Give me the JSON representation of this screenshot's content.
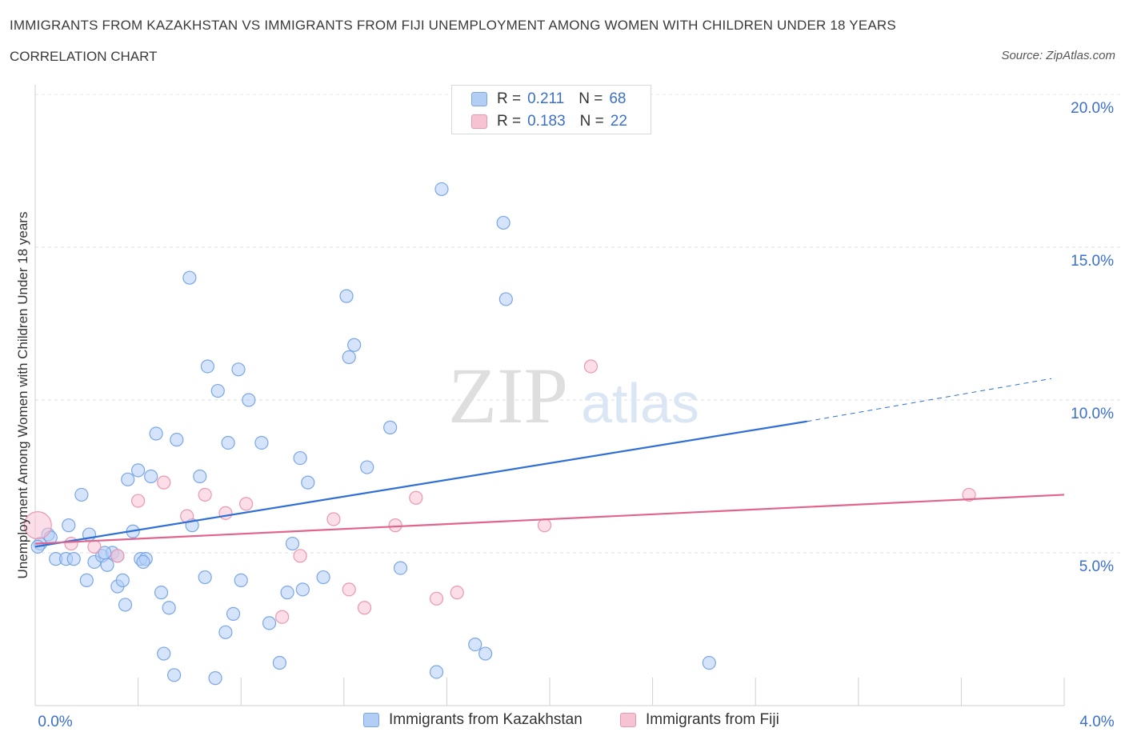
{
  "header": {
    "title": "IMMIGRANTS FROM KAZAKHSTAN VS IMMIGRANTS FROM FIJI UNEMPLOYMENT AMONG WOMEN WITH CHILDREN UNDER 18 YEARS",
    "subtitle": "CORRELATION CHART",
    "source": "Source: ZipAtlas.com"
  },
  "legend": {
    "r_label": "R =",
    "n_label": "N =",
    "rows": [
      {
        "r": "0.211",
        "n": "68",
        "color": "#b3cef5",
        "border": "#7aa6e6"
      },
      {
        "r": "0.183",
        "n": "22",
        "color": "#f7c3d3",
        "border": "#eb97b0"
      }
    ]
  },
  "watermark": {
    "zip": "ZIP",
    "atlas": "atlas"
  },
  "chart_data": {
    "type": "scatter",
    "title": "IMMIGRANTS FROM KAZAKHSTAN VS IMMIGRANTS FROM FIJI UNEMPLOYMENT AMONG WOMEN WITH CHILDREN UNDER 18 YEARS",
    "xlabel": "",
    "ylabel": "Unemployment Among Women with Children Under 18 years",
    "xlim": [
      0,
      4
    ],
    "ylim": [
      0,
      20
    ],
    "x_tick_labels": [
      "0.0%",
      "4.0%"
    ],
    "y_ticks": [
      5,
      10,
      15,
      20
    ],
    "y_tick_labels": [
      "5.0%",
      "10.0%",
      "15.0%",
      "20.0%"
    ],
    "grid": true,
    "legend_position": "bottom",
    "series": [
      {
        "name": "Immigrants from Kazakhstan",
        "color": "#7aa6e6",
        "fill": "#b3cef5",
        "trend": {
          "x0": 0,
          "y0": 5.2,
          "x1": 3.0,
          "y1": 9.3,
          "dash_to_x": 3.95,
          "dash_to_y": 10.7
        },
        "points": [
          [
            0.02,
            5.3
          ],
          [
            0.05,
            5.6
          ],
          [
            0.06,
            5.5
          ],
          [
            0.08,
            4.8
          ],
          [
            0.12,
            4.8
          ],
          [
            0.13,
            5.9
          ],
          [
            0.18,
            6.9
          ],
          [
            0.2,
            4.1
          ],
          [
            0.21,
            5.6
          ],
          [
            0.23,
            4.7
          ],
          [
            0.26,
            4.9
          ],
          [
            0.3,
            5.0
          ],
          [
            0.32,
            4.9
          ],
          [
            0.32,
            3.9
          ],
          [
            0.34,
            4.1
          ],
          [
            0.35,
            3.3
          ],
          [
            0.36,
            7.4
          ],
          [
            0.38,
            5.7
          ],
          [
            0.4,
            7.7
          ],
          [
            0.41,
            4.8
          ],
          [
            0.43,
            4.8
          ],
          [
            0.45,
            7.5
          ],
          [
            0.47,
            8.9
          ],
          [
            0.49,
            3.7
          ],
          [
            0.5,
            1.7
          ],
          [
            0.52,
            3.2
          ],
          [
            0.54,
            1.0
          ],
          [
            0.55,
            8.7
          ],
          [
            0.6,
            14.0
          ],
          [
            0.61,
            5.9
          ],
          [
            0.64,
            7.5
          ],
          [
            0.66,
            4.2
          ],
          [
            0.67,
            11.1
          ],
          [
            0.7,
            0.9
          ],
          [
            0.71,
            10.3
          ],
          [
            0.74,
            2.4
          ],
          [
            0.75,
            8.6
          ],
          [
            0.77,
            3.0
          ],
          [
            0.79,
            11.0
          ],
          [
            0.8,
            4.1
          ],
          [
            0.83,
            10.0
          ],
          [
            0.88,
            8.6
          ],
          [
            0.91,
            2.7
          ],
          [
            0.95,
            1.4
          ],
          [
            0.98,
            3.7
          ],
          [
            1.0,
            5.3
          ],
          [
            1.03,
            8.1
          ],
          [
            1.04,
            3.8
          ],
          [
            1.06,
            7.3
          ],
          [
            1.12,
            4.2
          ],
          [
            1.21,
            13.4
          ],
          [
            1.22,
            11.4
          ],
          [
            1.24,
            11.8
          ],
          [
            1.29,
            7.8
          ],
          [
            1.38,
            9.1
          ],
          [
            1.42,
            4.5
          ],
          [
            1.56,
            1.1
          ],
          [
            1.58,
            16.9
          ],
          [
            1.71,
            2.0
          ],
          [
            1.75,
            1.7
          ],
          [
            1.82,
            15.8
          ],
          [
            1.83,
            13.3
          ],
          [
            2.62,
            1.4
          ],
          [
            0.01,
            5.2
          ],
          [
            0.15,
            4.8
          ],
          [
            0.27,
            5.0
          ],
          [
            0.28,
            4.6
          ],
          [
            0.42,
            4.7
          ]
        ]
      },
      {
        "name": "Immigrants from Fiji",
        "color": "#eb97b0",
        "fill": "#f7c3d3",
        "trend": {
          "x0": 0,
          "y0": 5.3,
          "x1": 4.0,
          "y1": 6.9
        },
        "points": [
          [
            0.01,
            5.9
          ],
          [
            0.14,
            5.3
          ],
          [
            0.23,
            5.2
          ],
          [
            0.32,
            4.9
          ],
          [
            0.4,
            6.7
          ],
          [
            0.5,
            7.3
          ],
          [
            0.59,
            6.2
          ],
          [
            0.66,
            6.9
          ],
          [
            0.74,
            6.3
          ],
          [
            0.82,
            6.6
          ],
          [
            0.96,
            2.9
          ],
          [
            1.03,
            4.9
          ],
          [
            1.16,
            6.1
          ],
          [
            1.22,
            3.8
          ],
          [
            1.28,
            3.2
          ],
          [
            1.4,
            5.9
          ],
          [
            1.48,
            6.8
          ],
          [
            1.56,
            3.5
          ],
          [
            1.64,
            3.7
          ],
          [
            1.98,
            5.9
          ],
          [
            2.16,
            11.1
          ],
          [
            3.63,
            6.9
          ]
        ]
      }
    ]
  }
}
